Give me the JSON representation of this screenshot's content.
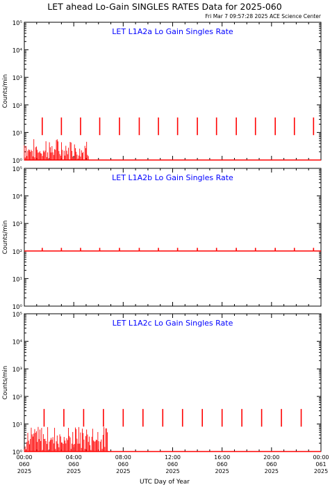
{
  "header": {
    "title": "LET ahead Lo-Gain SINGLES RATES Data for 2025-060",
    "timestamp": "Fri Mar  7 09:57:28 2025 ACE Science Center"
  },
  "colors": {
    "series": "#ff0000",
    "panel_title": "#0000ff",
    "axes": "#000000",
    "background": "#ffffff"
  },
  "chart_data": [
    {
      "type": "line",
      "title": "LET L1A2a Lo Gain Singles Rate",
      "ylabel": "Counts/min",
      "xlabel": "UTC Day of Year",
      "yscale": "log",
      "ylim": [
        1,
        100000
      ],
      "xlim": [
        0,
        24
      ],
      "yticks": [
        1,
        10,
        100,
        1000,
        10000,
        100000
      ],
      "ytick_labels": [
        "10⁰",
        "10¹",
        "10²",
        "10³",
        "10⁴",
        "10⁵"
      ],
      "series": [
        {
          "baseline": 1,
          "baseline_extent": [
            0,
            24
          ],
          "spikes_hours": [
            1.45,
            3.0,
            4.55,
            6.1,
            7.7,
            9.3,
            10.85,
            12.4,
            14.0,
            15.55,
            17.15,
            18.7,
            20.3,
            21.85,
            23.4
          ],
          "spike_value": 35,
          "noise_range_hours": [
            0,
            5.2
          ],
          "noise_max": 6
        }
      ]
    },
    {
      "type": "line",
      "title": "LET L1A2b Lo Gain Singles Rate",
      "ylabel": "Counts/min",
      "xlabel": "UTC Day of Year",
      "yscale": "log",
      "ylim": [
        1,
        100000
      ],
      "xlim": [
        0,
        24
      ],
      "yticks": [
        1,
        10,
        100,
        1000,
        10000,
        100000
      ],
      "ytick_labels": [
        "10⁰",
        "10¹",
        "10²",
        "10³",
        "10⁴",
        "10⁵"
      ],
      "series": [
        {
          "baseline": 100,
          "baseline_extent": [
            0,
            24
          ],
          "spikes_hours": [
            1.45,
            3.0,
            4.55,
            6.1,
            7.7,
            9.3,
            10.85,
            12.4,
            14.0,
            15.55,
            17.15,
            18.7,
            20.3,
            21.85,
            23.4
          ],
          "spike_value": 130,
          "noise_range_hours": [
            0,
            0
          ],
          "noise_max": 1
        }
      ]
    },
    {
      "type": "line",
      "title": "LET L1A2c Lo Gain Singles Rate",
      "ylabel": "Counts/min",
      "xlabel": "UTC Day of Year",
      "yscale": "log",
      "ylim": [
        1,
        100000
      ],
      "xlim": [
        0,
        24
      ],
      "yticks": [
        1,
        10,
        100,
        1000,
        10000,
        100000
      ],
      "ytick_labels": [
        "10⁰",
        "10¹",
        "10²",
        "10³",
        "10⁴",
        "10⁵"
      ],
      "series": [
        {
          "baseline": 1,
          "baseline_extent": [
            0,
            24
          ],
          "spikes_hours": [
            1.6,
            3.2,
            4.8,
            6.4,
            8.0,
            9.6,
            11.2,
            12.8,
            14.4,
            16.0,
            17.6,
            19.2,
            20.8,
            22.4
          ],
          "spike_value": 35,
          "noise_range_hours": [
            0,
            6.8
          ],
          "noise_max": 8
        }
      ]
    }
  ],
  "xaxis": {
    "ticks_hours": [
      0,
      4,
      8,
      12,
      16,
      20,
      24
    ],
    "tick_labels": [
      [
        "00:00",
        "060",
        "2025"
      ],
      [
        "04:00",
        "060",
        "2025"
      ],
      [
        "08:00",
        "060",
        "2025"
      ],
      [
        "12:00",
        "060",
        "2025"
      ],
      [
        "16:00",
        "060",
        "2025"
      ],
      [
        "20:00",
        "060",
        "2025"
      ],
      [
        "00:00",
        "061",
        "2025"
      ]
    ],
    "label": "UTC Day of Year"
  }
}
